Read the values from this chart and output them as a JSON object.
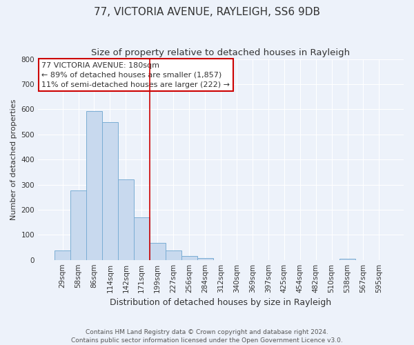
{
  "title": "77, VICTORIA AVENUE, RAYLEIGH, SS6 9DB",
  "subtitle": "Size of property relative to detached houses in Rayleigh",
  "xlabel": "Distribution of detached houses by size in Rayleigh",
  "ylabel": "Number of detached properties",
  "bin_labels": [
    "29sqm",
    "58sqm",
    "86sqm",
    "114sqm",
    "142sqm",
    "171sqm",
    "199sqm",
    "227sqm",
    "256sqm",
    "284sqm",
    "312sqm",
    "340sqm",
    "369sqm",
    "397sqm",
    "425sqm",
    "454sqm",
    "482sqm",
    "510sqm",
    "538sqm",
    "567sqm",
    "595sqm"
  ],
  "bar_heights": [
    38,
    278,
    592,
    550,
    320,
    170,
    68,
    38,
    15,
    8,
    0,
    0,
    0,
    0,
    0,
    0,
    0,
    0,
    5,
    0,
    0
  ],
  "bar_color": "#c8d9ee",
  "bar_edge_color": "#7aadd4",
  "vline_x_index": 5.5,
  "vline_color": "#cc0000",
  "ylim": [
    0,
    800
  ],
  "yticks": [
    0,
    100,
    200,
    300,
    400,
    500,
    600,
    700,
    800
  ],
  "annotation_title": "77 VICTORIA AVENUE: 180sqm",
  "annotation_line1": "← 89% of detached houses are smaller (1,857)",
  "annotation_line2": "11% of semi-detached houses are larger (222) →",
  "annotation_box_color": "#ffffff",
  "annotation_box_edge": "#cc0000",
  "footer_line1": "Contains HM Land Registry data © Crown copyright and database right 2024.",
  "footer_line2": "Contains public sector information licensed under the Open Government Licence v3.0.",
  "background_color": "#edf2fa",
  "grid_color": "#ffffff",
  "title_fontsize": 11,
  "subtitle_fontsize": 9.5,
  "xlabel_fontsize": 9,
  "ylabel_fontsize": 8,
  "tick_fontsize": 7.5,
  "footer_fontsize": 6.5,
  "annotation_fontsize": 8
}
